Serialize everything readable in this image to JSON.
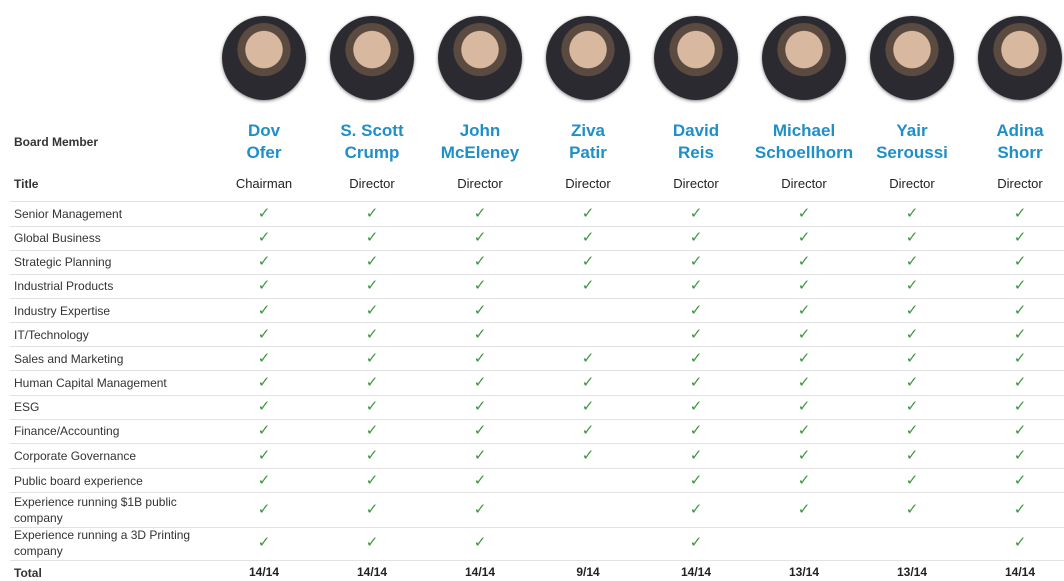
{
  "table": {
    "header_label": "Board Member",
    "title_label": "Title",
    "total_label": "Total",
    "members": [
      {
        "name": [
          "Dov",
          "Ofer"
        ],
        "title": "Chairman",
        "total": "14/14"
      },
      {
        "name": [
          "S. Scott",
          "Crump"
        ],
        "title": "Director",
        "total": "14/14"
      },
      {
        "name": [
          "John",
          "McEleney"
        ],
        "title": "Director",
        "total": "14/14"
      },
      {
        "name": [
          "Ziva",
          "Patir"
        ],
        "title": "Director",
        "total": "9/14"
      },
      {
        "name": [
          "David",
          "Reis"
        ],
        "title": "Director",
        "total": "14/14"
      },
      {
        "name": [
          "Michael",
          "Schoellhorn"
        ],
        "title": "Director",
        "total": "13/14"
      },
      {
        "name": [
          "Yair",
          "Seroussi"
        ],
        "title": "Director",
        "total": "13/14"
      },
      {
        "name": [
          "Adina",
          "Shorr"
        ],
        "title": "Director",
        "total": "14/14"
      }
    ],
    "rows": [
      {
        "label": "Senior Management",
        "cells": [
          "✓",
          "✓",
          "✓",
          "✓",
          "✓",
          "✓",
          "✓",
          "✓"
        ]
      },
      {
        "label": "Global Business",
        "cells": [
          "✓",
          "✓",
          "✓",
          "✓",
          "✓",
          "✓",
          "✓",
          "✓"
        ]
      },
      {
        "label": "Strategic Planning",
        "cells": [
          "✓",
          "✓",
          "✓",
          "✓",
          "✓",
          "✓",
          "✓",
          "✓"
        ]
      },
      {
        "label": "Industrial Products",
        "cells": [
          "✓",
          "✓",
          "✓",
          "✓",
          "✓",
          "✓",
          "✓",
          "✓"
        ]
      },
      {
        "label": "Industry  Expertise",
        "cells": [
          "✓",
          "✓",
          "✓",
          null,
          "✓",
          "✓",
          "✓",
          "✓"
        ]
      },
      {
        "label": "IT/Technology",
        "cells": [
          "✓",
          "✓",
          "✓",
          null,
          "✓",
          "✓",
          "✓",
          "✓"
        ]
      },
      {
        "label": "Sales and Marketing",
        "cells": [
          "✓",
          "✓",
          "✓",
          "✓",
          "✓",
          "✓",
          "✓",
          "✓"
        ]
      },
      {
        "label": "Human Capital Management",
        "cells": [
          "✓",
          "✓",
          "✓",
          "✓",
          "✓",
          "✓",
          "✓",
          "✓"
        ]
      },
      {
        "label": "ESG",
        "cells": [
          "✓",
          "✓",
          "✓",
          "✓",
          "✓",
          "✓",
          "✓",
          "✓"
        ]
      },
      {
        "label": "Finance/Accounting",
        "cells": [
          "✓",
          "✓",
          "✓",
          "✓",
          "✓",
          "✓",
          "✓",
          "✓"
        ]
      },
      {
        "label": "Corporate Governance",
        "cells": [
          "✓",
          "✓",
          "✓",
          "✓",
          "✓",
          "✓",
          "✓",
          "✓"
        ]
      },
      {
        "label": "Public board experience",
        "cells": [
          "✓",
          "✓",
          "✓",
          null,
          "✓",
          "✓",
          "✓",
          "✓"
        ]
      },
      {
        "label": "Experience running $1B public company",
        "cells": [
          "✓",
          "✓",
          "✓",
          null,
          "✓",
          "✓",
          "✓",
          "✓"
        ]
      },
      {
        "label": "Experience running a 3D Printing company",
        "cells": [
          "✓",
          "✓",
          "✓",
          null,
          "✓",
          null,
          null,
          "✓"
        ]
      }
    ]
  }
}
